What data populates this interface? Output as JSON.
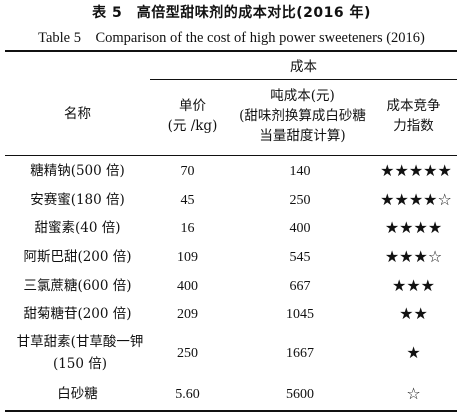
{
  "title_cn": "表 5　高倍型甜味剂的成本对比(2016 年)",
  "title_en": "Table 5　Comparison of the cost of high power sweeteners (2016)",
  "headers": {
    "cost_group": "成本",
    "name": "名称",
    "unit_price_l1": "单价",
    "unit_price_l2": "(元 /kg)",
    "ton_cost_l1": "吨成本(元)",
    "ton_cost_l2": "(甜味剂换算成白砂糖",
    "ton_cost_l3": "当量甜度计算)",
    "index_l1": "成本竞争",
    "index_l2": "力指数"
  },
  "rows": [
    {
      "name": "糖精钠(500 倍)",
      "price": "70",
      "ton": "140",
      "stars": "★★★★★"
    },
    {
      "name": "安赛蜜(180 倍)",
      "price": "45",
      "ton": "250",
      "stars": "★★★★☆"
    },
    {
      "name": "甜蜜素(40 倍)",
      "price": "16",
      "ton": "400",
      "stars": "★★★★"
    },
    {
      "name": "阿斯巴甜(200 倍)",
      "price": "109",
      "ton": "545",
      "stars": "★★★☆"
    },
    {
      "name": "三氯蔗糖(600 倍)",
      "price": "400",
      "ton": "667",
      "stars": "★★★"
    },
    {
      "name": "甜菊糖苷(200 倍)",
      "price": "209",
      "ton": "1045",
      "stars": "★★"
    },
    {
      "name_l1": "甘草甜素(甘草酸一钾",
      "name_l2": "(150 倍)",
      "price": "250",
      "ton": "1667",
      "stars": "★"
    },
    {
      "name": "白砂糖",
      "price": "5.60",
      "ton": "5600",
      "stars": "☆"
    }
  ]
}
